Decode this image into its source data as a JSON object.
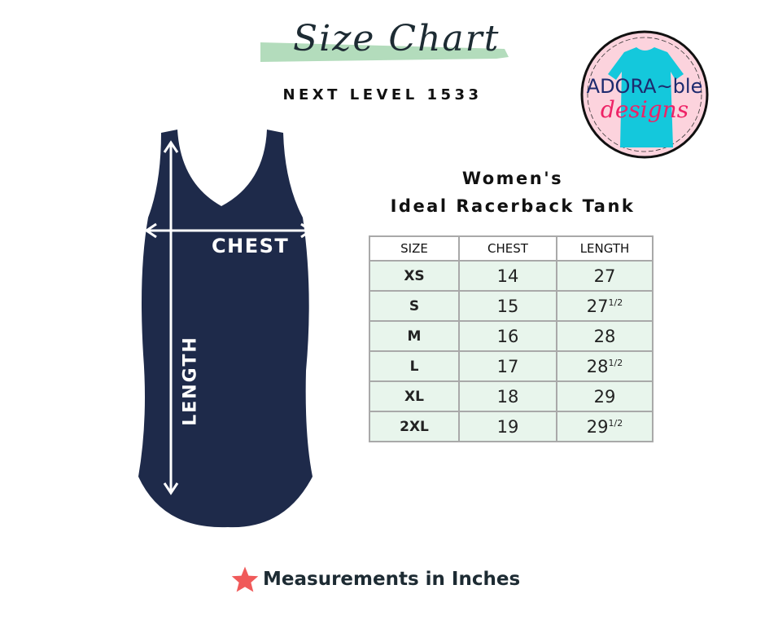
{
  "header": {
    "title": "Size Chart",
    "subtitle": "NEXT LEVEL 1533"
  },
  "logo": {
    "line1": "ADORA~ble",
    "line2": "designs"
  },
  "product": {
    "line1": "Women's",
    "line2": "Ideal Racerback Tank"
  },
  "garment": {
    "chest_label": "CHEST",
    "length_label": "LENGTH",
    "color": "#1e2a4a"
  },
  "table": {
    "headers": [
      "SIZE",
      "CHEST",
      "LENGTH"
    ],
    "rows": [
      {
        "size": "XS",
        "chest": "14",
        "length": "27",
        "frac": ""
      },
      {
        "size": "S",
        "chest": "15",
        "length": "27",
        "frac": "1/2"
      },
      {
        "size": "M",
        "chest": "16",
        "length": "28",
        "frac": ""
      },
      {
        "size": "L",
        "chest": "17",
        "length": "28",
        "frac": "1/2"
      },
      {
        "size": "XL",
        "chest": "18",
        "length": "29",
        "frac": ""
      },
      {
        "size": "2XL",
        "chest": "19",
        "length": "29",
        "frac": "1/2"
      }
    ]
  },
  "footer": {
    "note": "Measurements in Inches",
    "icon": "star-icon",
    "star_color": "#f05a5a"
  },
  "colors": {
    "accent_green": "#b3dcbc",
    "row_bg": "#e8f5ec",
    "logo_pink": "#fcd3dd",
    "logo_teal": "#14c8dc"
  }
}
